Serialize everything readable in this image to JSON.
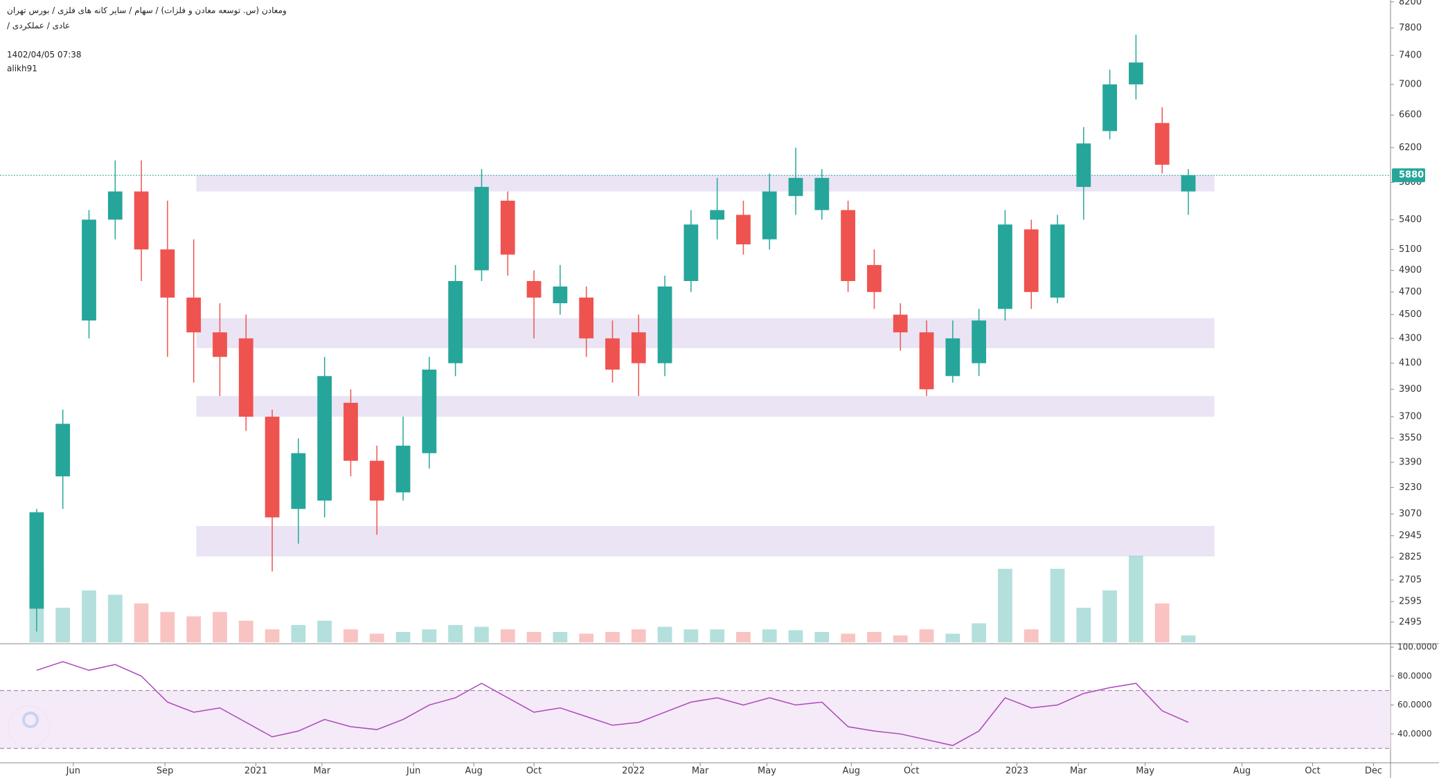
{
  "chart_data": {
    "type": "candlestick",
    "title": "ومعادن (س. توسعه معادن و فلزات) / سهام / سایر کانه های فلزی / بورس تهران",
    "subtitle": "عادی / عملکردی /",
    "date": "1402/04/05 07:38",
    "author": "alikh91",
    "log_scale": true,
    "up_color": "#26a69a",
    "down_color": "#ef5350",
    "x": [
      0,
      4,
      8,
      12,
      16,
      20,
      24,
      28,
      32,
      36,
      40,
      44,
      48,
      52,
      56,
      60,
      64,
      68,
      72,
      76,
      80,
      84,
      88,
      92,
      96,
      100,
      104,
      108,
      112,
      116,
      120,
      124,
      128,
      132,
      136,
      140,
      144,
      148,
      152,
      156,
      160,
      164,
      168,
      172,
      176
    ],
    "open": [
      2560,
      3300,
      4450,
      5400,
      5700,
      5100,
      4650,
      4350,
      4300,
      3700,
      3100,
      3150,
      3800,
      3400,
      3200,
      3450,
      4100,
      4900,
      5600,
      4800,
      4600,
      4650,
      4300,
      4350,
      4100,
      4800,
      5400,
      5450,
      5200,
      5650,
      5500,
      5500,
      4950,
      4500,
      4350,
      4000,
      4100,
      4550,
      5300,
      4650,
      5750,
      6400,
      7000,
      6500,
      5700
    ],
    "high": [
      3100,
      3750,
      5500,
      6050,
      6050,
      5600,
      5200,
      4600,
      4500,
      3750,
      3550,
      4150,
      3900,
      3500,
      3700,
      4150,
      4950,
      5950,
      5700,
      4900,
      4950,
      4750,
      4450,
      4500,
      4850,
      5500,
      5850,
      5600,
      5900,
      6200,
      5950,
      5600,
      5100,
      4600,
      4450,
      4450,
      4550,
      5500,
      5400,
      5450,
      6450,
      7200,
      7700,
      6700,
      5950
    ],
    "low": [
      2450,
      3100,
      4300,
      5200,
      4800,
      4150,
      3950,
      3850,
      3600,
      2750,
      2900,
      3050,
      3300,
      2950,
      3150,
      3350,
      4000,
      4800,
      4850,
      4300,
      4500,
      4150,
      3950,
      3850,
      4000,
      4700,
      5200,
      5050,
      5100,
      5450,
      5400,
      4700,
      4550,
      4200,
      3850,
      3950,
      4000,
      4450,
      4550,
      4600,
      5400,
      6300,
      6800,
      5900,
      5450
    ],
    "close": [
      3080,
      3650,
      5400,
      5700,
      5100,
      4650,
      4350,
      4150,
      3700,
      3050,
      3450,
      4000,
      3400,
      3150,
      3500,
      4050,
      4800,
      5750,
      5050,
      4650,
      4750,
      4300,
      4050,
      4100,
      4750,
      5350,
      5500,
      5150,
      5700,
      5850,
      5850,
      4800,
      4700,
      4350,
      3900,
      4300,
      4450,
      5350,
      4700,
      5350,
      6250,
      7000,
      7300,
      6000,
      5880
    ],
    "volume": [
      85,
      40,
      60,
      55,
      45,
      35,
      30,
      35,
      25,
      15,
      20,
      25,
      15,
      10,
      12,
      15,
      20,
      18,
      15,
      12,
      12,
      10,
      12,
      15,
      18,
      15,
      15,
      12,
      15,
      14,
      12,
      10,
      12,
      8,
      15,
      10,
      22,
      85,
      15,
      85,
      40,
      60,
      100,
      45,
      8
    ],
    "last_price": 5880,
    "zones": [
      {
        "low": 5700,
        "high": 5880
      },
      {
        "low": 4220,
        "high": 4470
      },
      {
        "low": 3700,
        "high": 3850
      },
      {
        "low": 2830,
        "high": 3000
      }
    ],
    "ylim": [
      2400,
      8230
    ],
    "yticks": [
      2495,
      2595,
      2705,
      2825,
      2945,
      3070,
      3230,
      3390,
      3550,
      3700,
      3900,
      4100,
      4300,
      4500,
      4700,
      4900,
      5100,
      5400,
      5800,
      6200,
      6600,
      7000,
      7400,
      7800,
      8200
    ],
    "xlim": [
      -5.6,
      206.9
    ],
    "xticks": [
      {
        "value": 5.6,
        "label": "Jun"
      },
      {
        "value": 19.6,
        "label": "Sep"
      },
      {
        "value": 33.5,
        "label": "2021"
      },
      {
        "value": 43.6,
        "label": "Mar"
      },
      {
        "value": 57.6,
        "label": "Jun"
      },
      {
        "value": 66.8,
        "label": "Aug"
      },
      {
        "value": 76,
        "label": "Oct"
      },
      {
        "value": 91.2,
        "label": "2022"
      },
      {
        "value": 101.4,
        "label": "Mar"
      },
      {
        "value": 111.6,
        "label": "May"
      },
      {
        "value": 124.5,
        "label": "Aug"
      },
      {
        "value": 133.7,
        "label": "Oct"
      },
      {
        "value": 149.8,
        "label": "2023"
      },
      {
        "value": 159.2,
        "label": "Mar"
      },
      {
        "value": 169.4,
        "label": "May"
      },
      {
        "value": 184.2,
        "label": "Aug"
      },
      {
        "value": 195,
        "label": "Oct"
      },
      {
        "value": 204.3,
        "label": "Dec"
      }
    ],
    "rsi": {
      "values": [
        84,
        90,
        84,
        88,
        80,
        62,
        55,
        58,
        48,
        38,
        42,
        50,
        45,
        43,
        50,
        60,
        65,
        75,
        65,
        55,
        58,
        52,
        46,
        48,
        55,
        62,
        65,
        60,
        65,
        60,
        62,
        45,
        42,
        40,
        36,
        32,
        42,
        65,
        58,
        60,
        68,
        72,
        75,
        56,
        48
      ],
      "color": "#ab47bc",
      "ylim": [
        21,
        100
      ],
      "yticks": [
        {
          "value": 40,
          "label": "40.0000"
        },
        {
          "value": 60,
          "label": "60.0000"
        },
        {
          "value": 80,
          "label": "80.0000"
        },
        {
          "value": 100,
          "label": "100.0000"
        }
      ],
      "bands": [
        30,
        70
      ]
    }
  }
}
